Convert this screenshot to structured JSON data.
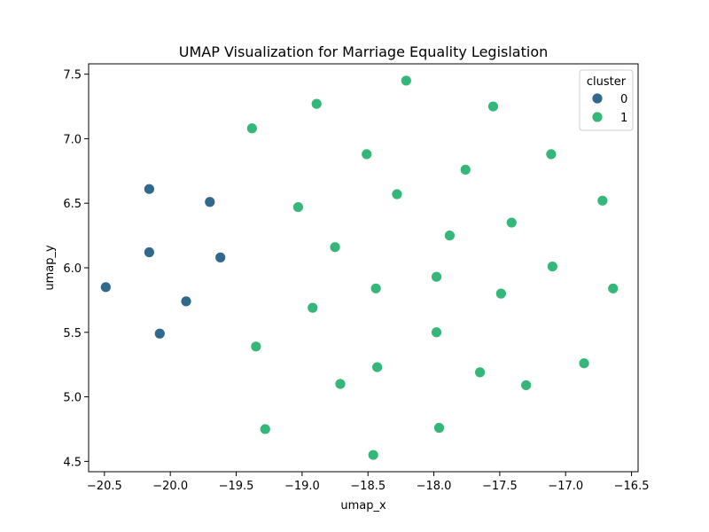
{
  "chart_data": {
    "type": "scatter",
    "title": "UMAP Visualization for Marriage Equality Legislation",
    "xlabel": "umap_x",
    "ylabel": "umap_y",
    "xlim": [
      -20.62,
      -16.45
    ],
    "ylim": [
      4.42,
      7.58
    ],
    "xticks": [
      -20.5,
      -20.0,
      -19.5,
      -19.0,
      -18.5,
      -18.0,
      -17.5,
      -17.0,
      -16.5
    ],
    "xtick_labels": [
      "−20.5",
      "−20.0",
      "−19.5",
      "−19.0",
      "−18.5",
      "−18.0",
      "−17.5",
      "−17.0",
      "−16.5"
    ],
    "yticks": [
      4.5,
      5.0,
      5.5,
      6.0,
      6.5,
      7.0,
      7.5
    ],
    "ytick_labels": [
      "4.5",
      "5.0",
      "5.5",
      "6.0",
      "6.5",
      "7.0",
      "7.5"
    ],
    "grid": false,
    "legend": {
      "title": "cluster",
      "placement": "top-right"
    },
    "series": [
      {
        "name": "0",
        "color": "#31688e",
        "points": [
          {
            "x": -20.16,
            "y": 6.61
          },
          {
            "x": -19.7,
            "y": 6.51
          },
          {
            "x": -20.16,
            "y": 6.12
          },
          {
            "x": -19.62,
            "y": 6.08
          },
          {
            "x": -20.49,
            "y": 5.85
          },
          {
            "x": -19.88,
            "y": 5.74
          },
          {
            "x": -20.08,
            "y": 5.49
          }
        ]
      },
      {
        "name": "1",
        "color": "#35b779",
        "points": [
          {
            "x": -18.21,
            "y": 7.45
          },
          {
            "x": -18.89,
            "y": 7.27
          },
          {
            "x": -17.55,
            "y": 7.25
          },
          {
            "x": -19.38,
            "y": 7.08
          },
          {
            "x": -18.51,
            "y": 6.88
          },
          {
            "x": -17.11,
            "y": 6.88
          },
          {
            "x": -17.76,
            "y": 6.76
          },
          {
            "x": -18.28,
            "y": 6.57
          },
          {
            "x": -16.72,
            "y": 6.52
          },
          {
            "x": -19.03,
            "y": 6.47
          },
          {
            "x": -17.41,
            "y": 6.35
          },
          {
            "x": -17.88,
            "y": 6.25
          },
          {
            "x": -18.75,
            "y": 6.16
          },
          {
            "x": -17.1,
            "y": 6.01
          },
          {
            "x": -17.98,
            "y": 5.93
          },
          {
            "x": -18.44,
            "y": 5.84
          },
          {
            "x": -16.64,
            "y": 5.84
          },
          {
            "x": -17.49,
            "y": 5.8
          },
          {
            "x": -18.92,
            "y": 5.69
          },
          {
            "x": -17.98,
            "y": 5.5
          },
          {
            "x": -19.35,
            "y": 5.39
          },
          {
            "x": -16.86,
            "y": 5.26
          },
          {
            "x": -18.43,
            "y": 5.23
          },
          {
            "x": -17.65,
            "y": 5.19
          },
          {
            "x": -18.71,
            "y": 5.1
          },
          {
            "x": -17.3,
            "y": 5.09
          },
          {
            "x": -19.28,
            "y": 4.75
          },
          {
            "x": -17.96,
            "y": 4.76
          },
          {
            "x": -18.46,
            "y": 4.55
          }
        ]
      }
    ]
  }
}
